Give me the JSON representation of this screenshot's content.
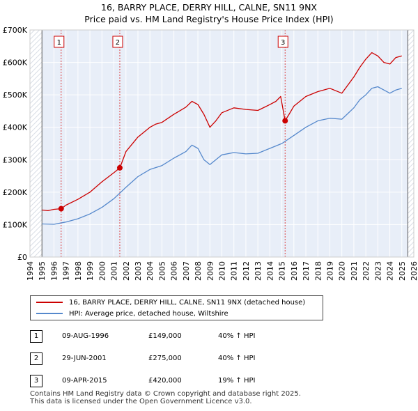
{
  "title_line1": "16, BARRY PLACE, DERRY HILL, CALNE, SN11 9NX",
  "title_line2": "Price paid vs. HM Land Registry's House Price Index (HPI)",
  "chart_data": {
    "type": "line",
    "title": "16, BARRY PLACE, DERRY HILL, CALNE, SN11 9NX — Price paid vs. HM Land Registry's House Price Index (HPI)",
    "xlabel": "",
    "ylabel": "",
    "xlim": [
      1994,
      2026
    ],
    "ylim": [
      0,
      700000
    ],
    "grid": true,
    "x_ticks": [
      1994,
      1995,
      1996,
      1997,
      1998,
      1999,
      2000,
      2001,
      2002,
      2003,
      2004,
      2005,
      2006,
      2007,
      2008,
      2009,
      2010,
      2011,
      2012,
      2013,
      2014,
      2015,
      2016,
      2017,
      2018,
      2019,
      2020,
      2021,
      2022,
      2023,
      2024,
      2025,
      2026
    ],
    "y_ticks": [
      {
        "value": 0,
        "label": "£0"
      },
      {
        "value": 100000,
        "label": "£100K"
      },
      {
        "value": 200000,
        "label": "£200K"
      },
      {
        "value": 300000,
        "label": "£300K"
      },
      {
        "value": 400000,
        "label": "£400K"
      },
      {
        "value": 500000,
        "label": "£500K"
      },
      {
        "value": 600000,
        "label": "£600K"
      },
      {
        "value": 700000,
        "label": "£700K"
      }
    ],
    "data_start_year": 1995,
    "data_end_year": 2025.5,
    "series": [
      {
        "name": "16, BARRY PLACE, DERRY HILL, CALNE, SN11 9NX (detached house)",
        "color": "#cc0000",
        "x": [
          1995,
          1995.5,
          1996,
          1996.6,
          1997,
          1998,
          1999,
          2000,
          2001,
          2001.5,
          2002,
          2003,
          2004,
          2004.5,
          2005,
          2006,
          2007,
          2007.5,
          2008,
          2008.5,
          2009,
          2009.5,
          2010,
          2011,
          2012,
          2013,
          2014,
          2014.5,
          2014.9,
          2015.27,
          2015.6,
          2016,
          2017,
          2018,
          2019,
          2020,
          2021,
          2021.5,
          2022,
          2022.5,
          2023,
          2023.5,
          2024,
          2024.5,
          2025
        ],
        "y": [
          145000,
          143000,
          147000,
          149000,
          160000,
          178000,
          200000,
          232000,
          260000,
          275000,
          325000,
          370000,
          400000,
          410000,
          415000,
          440000,
          462000,
          480000,
          470000,
          440000,
          400000,
          420000,
          445000,
          460000,
          455000,
          452000,
          470000,
          480000,
          495000,
          420000,
          440000,
          465000,
          495000,
          510000,
          520000,
          505000,
          555000,
          585000,
          610000,
          630000,
          620000,
          600000,
          595000,
          615000,
          620000
        ]
      },
      {
        "name": "HPI: Average price, detached house, Wiltshire",
        "color": "#5588cc",
        "x": [
          1995,
          1996,
          1997,
          1998,
          1999,
          2000,
          2001,
          2002,
          2003,
          2004,
          2005,
          2006,
          2007,
          2007.5,
          2008,
          2008.5,
          2009,
          2009.5,
          2010,
          2011,
          2012,
          2013,
          2014,
          2015,
          2016,
          2017,
          2018,
          2019,
          2020,
          2021,
          2021.5,
          2022,
          2022.5,
          2023,
          2023.5,
          2024,
          2024.5,
          2025
        ],
        "y": [
          102000,
          101000,
          108000,
          118000,
          133000,
          153000,
          180000,
          215000,
          248000,
          270000,
          282000,
          305000,
          325000,
          345000,
          335000,
          300000,
          285000,
          300000,
          315000,
          322000,
          318000,
          320000,
          335000,
          350000,
          375000,
          400000,
          420000,
          428000,
          425000,
          460000,
          485000,
          500000,
          520000,
          525000,
          515000,
          505000,
          515000,
          520000
        ]
      }
    ],
    "sales": [
      {
        "marker": "1",
        "x": 1996.6,
        "y": 149000
      },
      {
        "marker": "2",
        "x": 2001.49,
        "y": 275000
      },
      {
        "marker": "3",
        "x": 2015.27,
        "y": 420000
      }
    ]
  },
  "legend": {
    "property_label": "16, BARRY PLACE, DERRY HILL, CALNE, SN11 9NX (detached house)",
    "hpi_label": "HPI: Average price, detached house, Wiltshire"
  },
  "sales_table": [
    {
      "num": "1",
      "date": "09-AUG-1996",
      "price": "£149,000",
      "hpi": "40% ↑ HPI"
    },
    {
      "num": "2",
      "date": "29-JUN-2001",
      "price": "£275,000",
      "hpi": "40% ↑ HPI"
    },
    {
      "num": "3",
      "date": "09-APR-2015",
      "price": "£420,000",
      "hpi": "19% ↑ HPI"
    }
  ],
  "footer": {
    "line1": "Contains HM Land Registry data © Crown copyright and database right 2025.",
    "line2": "This data is licensed under the Open Government Licence v3.0."
  }
}
